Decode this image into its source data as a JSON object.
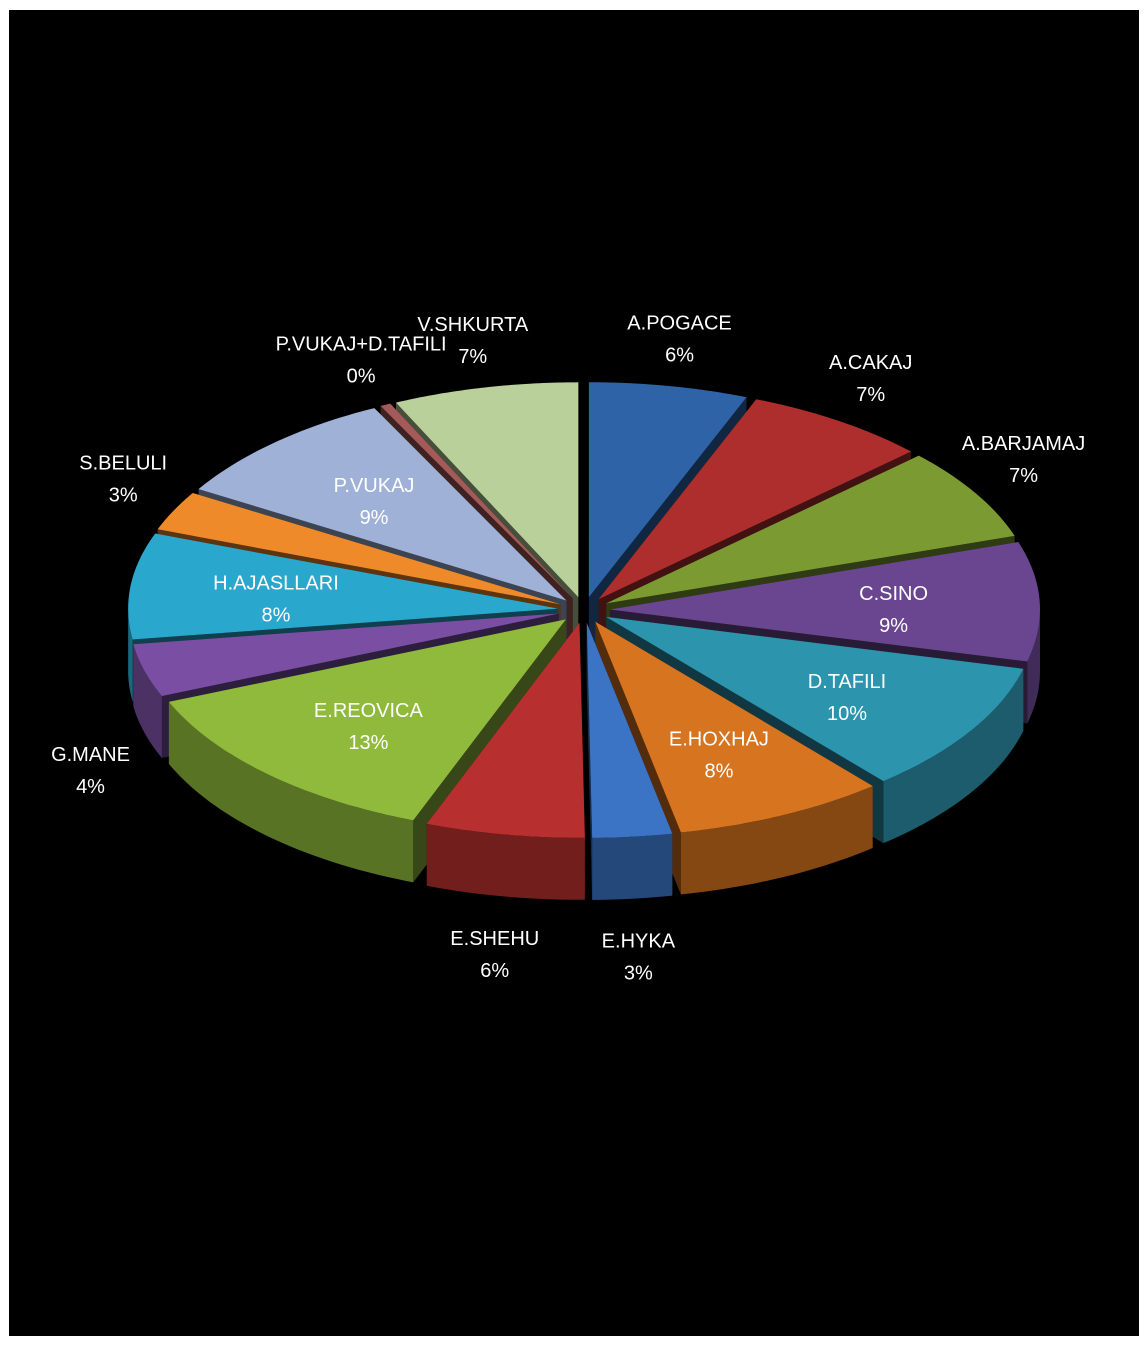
{
  "chart_data": {
    "type": "pie",
    "style": "3d-exploded",
    "background": "#000000",
    "legend": "none",
    "data_labels": "category-and-percent",
    "series": [
      {
        "values": [
          6,
          7,
          7,
          9,
          10,
          8,
          3,
          6,
          13,
          4,
          8,
          3,
          9,
          0,
          7
        ]
      }
    ],
    "slices": [
      {
        "label": "A.POGACE",
        "percent": "6%",
        "value": 6,
        "color": "#2e63a8",
        "label_color": "#ffffff"
      },
      {
        "label": "A.CAKAJ",
        "percent": "7%",
        "value": 7,
        "color": "#ad2e2c",
        "label_color": "#ffffff"
      },
      {
        "label": "A.BARJAMAJ",
        "percent": "7%",
        "value": 7,
        "color": "#7c9a32",
        "label_color": "#ffffff"
      },
      {
        "label": "C.SINO",
        "percent": "9%",
        "value": 9,
        "color": "#69468f",
        "label_color": "#ffffff"
      },
      {
        "label": "D.TAFILI",
        "percent": "10%",
        "value": 10,
        "color": "#2d94ae",
        "label_color": "#ffffff"
      },
      {
        "label": "E.HOXHAJ",
        "percent": "8%",
        "value": 8,
        "color": "#d7741f",
        "label_color": "#ffffff"
      },
      {
        "label": "E.HYKA",
        "percent": "3%",
        "value": 3,
        "color": "#3b74c4",
        "label_color": "#ffffff"
      },
      {
        "label": "E.SHEHU",
        "percent": "6%",
        "value": 6,
        "color": "#b7302f",
        "label_color": "#ffffff"
      },
      {
        "label": "E.REOVICA",
        "percent": "13%",
        "value": 13,
        "color": "#90ba3c",
        "label_color": "#ffffff"
      },
      {
        "label": "G.MANE",
        "percent": "4%",
        "value": 4,
        "color": "#7a4fa3",
        "label_color": "#ffffff"
      },
      {
        "label": "H.AJASLLARI",
        "percent": "8%",
        "value": 8,
        "color": "#2aa7cd",
        "label_color": "#ffffff"
      },
      {
        "label": "S.BELULI",
        "percent": "3%",
        "value": 3,
        "color": "#ef8a2a",
        "label_color": "#ffffff"
      },
      {
        "label": "P.VUKAJ",
        "percent": "9%",
        "value": 9,
        "color": "#9fb1d6",
        "label_color": "#ffffff"
      },
      {
        "label": "P.VUKAJ+D.TAFILI",
        "percent": "0%",
        "value": 0.4,
        "color": "#a35a58",
        "label_color": "#ffffff"
      },
      {
        "label": "V.SHKURTA",
        "percent": "7%",
        "value": 7,
        "color": "#b9d09a",
        "label_color": "#ffffff"
      }
    ]
  }
}
